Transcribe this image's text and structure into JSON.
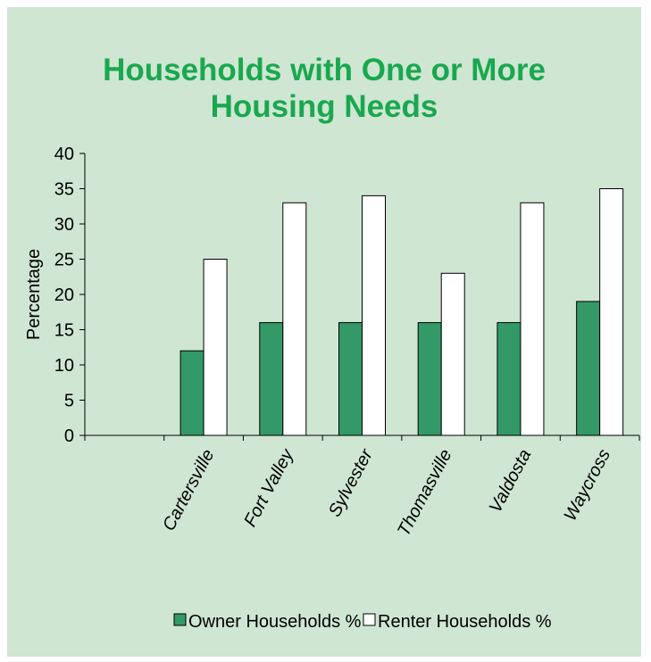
{
  "chart_data": {
    "type": "bar",
    "title_lines": [
      "Households with One or More",
      "Housing Needs"
    ],
    "ylabel": "Percentage",
    "xlabel": "",
    "ylim": [
      0,
      40
    ],
    "yticks": [
      0,
      5,
      10,
      15,
      20,
      25,
      30,
      35,
      40
    ],
    "categories": [
      "",
      "Cartersville",
      "Fort Valley",
      "Sylvester",
      "Thomasville",
      "Valdosta",
      "Waycross"
    ],
    "series": [
      {
        "name": "Owner Households %",
        "color": "#339966",
        "values": [
          null,
          12,
          16,
          16,
          16,
          16,
          19
        ]
      },
      {
        "name": "Renter Households %",
        "color": "#ffffff",
        "values": [
          null,
          25,
          33,
          34,
          23,
          33,
          35
        ]
      }
    ],
    "legend_position": "bottom",
    "grid": false,
    "colors": {
      "background": "#cfe6d2",
      "title": "#19a84f"
    }
  }
}
